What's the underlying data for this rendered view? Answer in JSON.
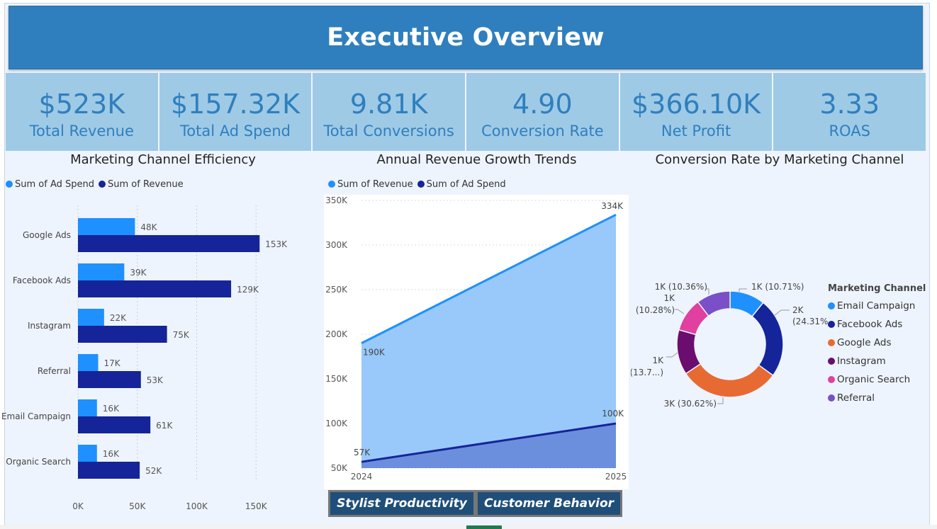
{
  "header": {
    "title": "Executive Overview"
  },
  "kpis": [
    {
      "value": "$523K",
      "label": "Total Revenue"
    },
    {
      "value": "$157.32K",
      "label": "Total Ad Spend"
    },
    {
      "value": "9.81K",
      "label": "Total Conversions"
    },
    {
      "value": "4.90",
      "label": "Conversion Rate"
    },
    {
      "value": "$366.10K",
      "label": "Net Profit"
    },
    {
      "value": "3.33",
      "label": "ROAS"
    }
  ],
  "colors": {
    "ad_spend": "#1e90ff",
    "revenue": "#16249a",
    "area_light": "#99c9fb",
    "area_dark": "#6b8fdc",
    "header": "#2f7fbe",
    "kpi_bg": "#9ecae6"
  },
  "tabs": [
    "Stylist Productivity",
    "Customer Behavior"
  ],
  "chart_data": [
    {
      "type": "bar",
      "title": "Marketing Channel Efficiency",
      "orientation": "horizontal",
      "legend": [
        "Sum of Ad Spend",
        "Sum of Revenue"
      ],
      "legend_placement": "top-left",
      "categories": [
        "Google Ads",
        "Facebook Ads",
        "Instagram",
        "Referral",
        "Email Campaign",
        "Organic Search"
      ],
      "series": [
        {
          "name": "Sum of Ad Spend",
          "values": [
            48000,
            39000,
            22000,
            17000,
            16000,
            16000
          ],
          "labels": [
            "48K",
            "39K",
            "22K",
            "17K",
            "16K",
            "16K"
          ]
        },
        {
          "name": "Sum of Revenue",
          "values": [
            153000,
            129000,
            75000,
            53000,
            61000,
            52000
          ],
          "labels": [
            "153K",
            "129K",
            "75K",
            "53K",
            "61K",
            "52K"
          ]
        }
      ],
      "xlim": [
        0,
        160000
      ],
      "xticks": [
        "0K",
        "50K",
        "100K",
        "150K"
      ],
      "grid": true
    },
    {
      "type": "area",
      "title": "Annual Revenue Growth Trends",
      "legend": [
        "Sum of Revenue",
        "Sum of Ad Spend"
      ],
      "legend_placement": "top-left",
      "x": [
        "2024",
        "2025"
      ],
      "series": [
        {
          "name": "Sum of Revenue",
          "values": [
            190000,
            334000
          ],
          "labels": [
            "190K",
            "334K"
          ]
        },
        {
          "name": "Sum of Ad Spend",
          "values": [
            57000,
            100000
          ],
          "labels": [
            "57K",
            "100K"
          ]
        }
      ],
      "ylim": [
        50000,
        350000
      ],
      "yticks": [
        "50K",
        "100K",
        "150K",
        "200K",
        "250K",
        "300K",
        "350K"
      ],
      "grid": true
    },
    {
      "type": "pie",
      "variant": "donut",
      "title": "Conversion Rate by Marketing Channel",
      "legend_title": "Marketing Channel",
      "legend_placement": "right",
      "slices": [
        {
          "name": "Email Campaign",
          "value": 10.71,
          "label": "1K (10.71%)",
          "color": "#1e90ff"
        },
        {
          "name": "Facebook Ads",
          "value": 24.31,
          "label_a": "2K",
          "label_b": "(24.31%)",
          "color": "#16249a"
        },
        {
          "name": "Google Ads",
          "value": 30.62,
          "label": "3K (30.62%)",
          "color": "#e86a33"
        },
        {
          "name": "Instagram",
          "value": 13.72,
          "label_a": "1K",
          "label_b": "(13.7...)",
          "color": "#6b0d6e"
        },
        {
          "name": "Organic Search",
          "value": 10.28,
          "label_a": "1K",
          "label_b": "(10.28%)",
          "color": "#e0409f"
        },
        {
          "name": "Referral",
          "value": 10.36,
          "label": "1K (10.36%)",
          "color": "#7a4fc7"
        }
      ]
    }
  ]
}
